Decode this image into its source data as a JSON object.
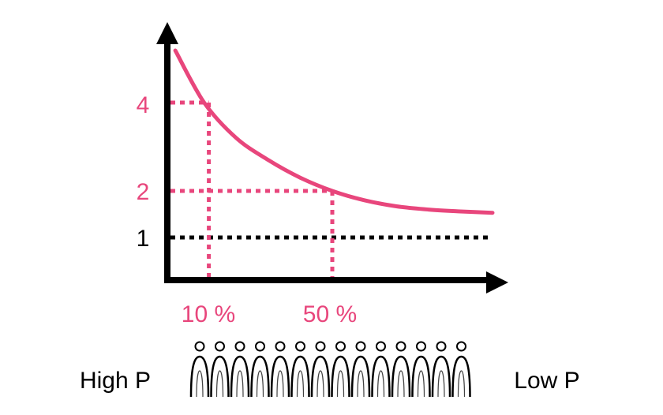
{
  "chart_data": {
    "type": "line",
    "title": "",
    "xlabel": "",
    "ylabel": "",
    "series": [
      {
        "name": "curve",
        "color": "#E8467C",
        "x": [
          1,
          10,
          20,
          30,
          40,
          50,
          60,
          70,
          80,
          90,
          100
        ],
        "y": [
          6.2,
          4.0,
          3.2,
          2.7,
          2.3,
          2.0,
          1.8,
          1.67,
          1.6,
          1.56,
          1.53
        ]
      }
    ],
    "x_markers": [
      {
        "x": 10,
        "y": 4,
        "label": "10 %"
      },
      {
        "x": 50,
        "y": 2,
        "label": "50 %"
      }
    ],
    "y_ticks": [
      {
        "value": 4,
        "label": "4",
        "color": "#E8467C"
      },
      {
        "value": 2,
        "label": "2",
        "color": "#E8467C"
      },
      {
        "value": 1,
        "label": "1",
        "color": "#000000"
      }
    ],
    "baseline": {
      "value": 1,
      "color": "#000000"
    },
    "xlim": [
      0,
      100
    ],
    "ylim": [
      0,
      7
    ]
  },
  "labels": {
    "left": "High P",
    "right": "Low P"
  },
  "population": {
    "count": 14,
    "icon": "person-icon"
  },
  "colors": {
    "accent": "#E8467C",
    "axis": "#000000"
  }
}
